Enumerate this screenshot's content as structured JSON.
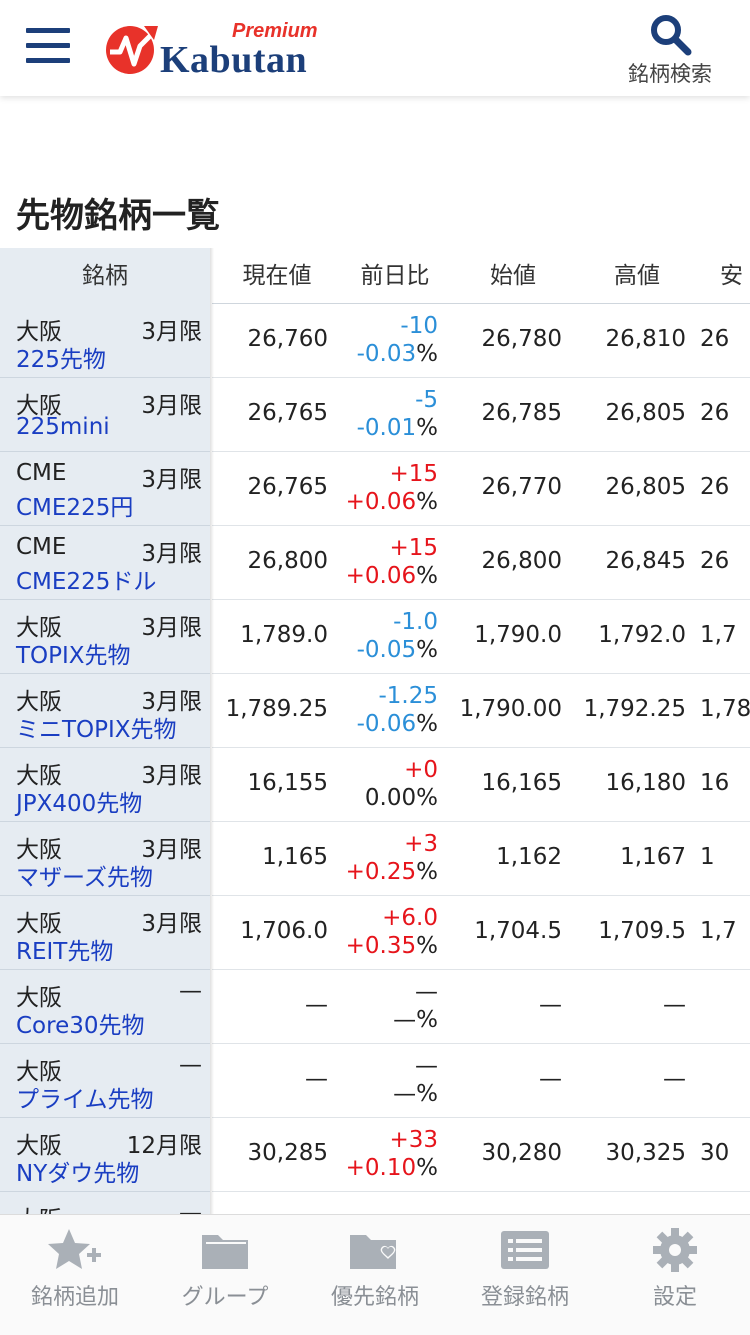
{
  "header": {
    "logo_premium": "Premium",
    "logo_text": "Kabutan",
    "search_label": "銘柄検索"
  },
  "page_title": "先物銘柄一覧",
  "table": {
    "columns": [
      "銘柄",
      "現在値",
      "前日比",
      "始値",
      "高値",
      "安"
    ],
    "rows": [
      {
        "exchange": "大阪",
        "month": "3月限",
        "symbol": "225先物",
        "price": "26,760",
        "change": "-10",
        "pct_value": "-0.03",
        "pct_sign": "%",
        "open": "26,780",
        "high": "26,810",
        "low": "26",
        "dir": "neg"
      },
      {
        "exchange": "大阪",
        "month": "3月限",
        "symbol": "225mini",
        "price": "26,765",
        "change": "-5",
        "pct_value": "-0.01",
        "pct_sign": "%",
        "open": "26,785",
        "high": "26,805",
        "low": "26",
        "dir": "neg"
      },
      {
        "exchange": "CME",
        "month": "3月限",
        "symbol": "CME225円",
        "price": "26,765",
        "change": "+15",
        "pct_value": "+0.06",
        "pct_sign": "%",
        "open": "26,770",
        "high": "26,805",
        "low": "26",
        "dir": "pos"
      },
      {
        "exchange": "CME",
        "month": "3月限",
        "symbol": "CME225ドル",
        "price": "26,800",
        "change": "+15",
        "pct_value": "+0.06",
        "pct_sign": "%",
        "open": "26,800",
        "high": "26,845",
        "low": "26",
        "dir": "pos"
      },
      {
        "exchange": "大阪",
        "month": "3月限",
        "symbol": "TOPIX先物",
        "price": "1,789.0",
        "change": "-1.0",
        "pct_value": "-0.05",
        "pct_sign": "%",
        "open": "1,790.0",
        "high": "1,792.0",
        "low": "1,7",
        "dir": "neg"
      },
      {
        "exchange": "大阪",
        "month": "3月限",
        "symbol": "ミニTOPIX先物",
        "price": "1,789.25",
        "change": "-1.25",
        "pct_value": "-0.06",
        "pct_sign": "%",
        "open": "1,790.00",
        "high": "1,792.25",
        "low": "1,78",
        "dir": "neg"
      },
      {
        "exchange": "大阪",
        "month": "3月限",
        "symbol": "JPX400先物",
        "price": "16,155",
        "change": "+0",
        "pct_value": "0.00",
        "pct_sign": "%",
        "open": "16,165",
        "high": "16,180",
        "low": "16",
        "dir": "zero"
      },
      {
        "exchange": "大阪",
        "month": "3月限",
        "symbol": "マザーズ先物",
        "price": "1,165",
        "change": "+3",
        "pct_value": "+0.25",
        "pct_sign": "%",
        "open": "1,162",
        "high": "1,167",
        "low": "1",
        "dir": "pos"
      },
      {
        "exchange": "大阪",
        "month": "3月限",
        "symbol": "REIT先物",
        "price": "1,706.0",
        "change": "+6.0",
        "pct_value": "+0.35",
        "pct_sign": "%",
        "open": "1,704.5",
        "high": "1,709.5",
        "low": "1,7",
        "dir": "pos"
      },
      {
        "exchange": "大阪",
        "month": "—",
        "symbol": "Core30先物",
        "price": "—",
        "change": "—",
        "pct_value": "—",
        "pct_sign": "%",
        "open": "—",
        "high": "—",
        "low": "",
        "dir": "flat"
      },
      {
        "exchange": "大阪",
        "month": "—",
        "symbol": "プライム先物",
        "price": "—",
        "change": "—",
        "pct_value": "—",
        "pct_sign": "%",
        "open": "—",
        "high": "—",
        "low": "",
        "dir": "flat"
      },
      {
        "exchange": "大阪",
        "month": "12月限",
        "symbol": "NYダウ先物",
        "price": "30,285",
        "change": "+33",
        "pct_value": "+0.10",
        "pct_sign": "%",
        "open": "30,280",
        "high": "30,325",
        "low": "30",
        "dir": "pos"
      },
      {
        "exchange": "大阪",
        "month": "—",
        "symbol": "",
        "price": "",
        "change": "",
        "pct_value": "",
        "pct_sign": "",
        "open": "",
        "high": "",
        "low": "",
        "dir": "flat"
      }
    ]
  },
  "bottom_nav": [
    {
      "label": "銘柄追加",
      "icon": "star-plus-icon"
    },
    {
      "label": "グループ",
      "icon": "folder-icon"
    },
    {
      "label": "優先銘柄",
      "icon": "folder-heart-icon"
    },
    {
      "label": "登録銘柄",
      "icon": "list-icon"
    },
    {
      "label": "設定",
      "icon": "gear-icon"
    }
  ],
  "colors": {
    "brand_navy": "#1c3f7a",
    "brand_red": "#e8322a",
    "link_blue": "#1a3ec2",
    "down_blue": "#2b8fd8",
    "up_red": "#e6141b",
    "fixed_col_bg": "#e6ecf2"
  }
}
